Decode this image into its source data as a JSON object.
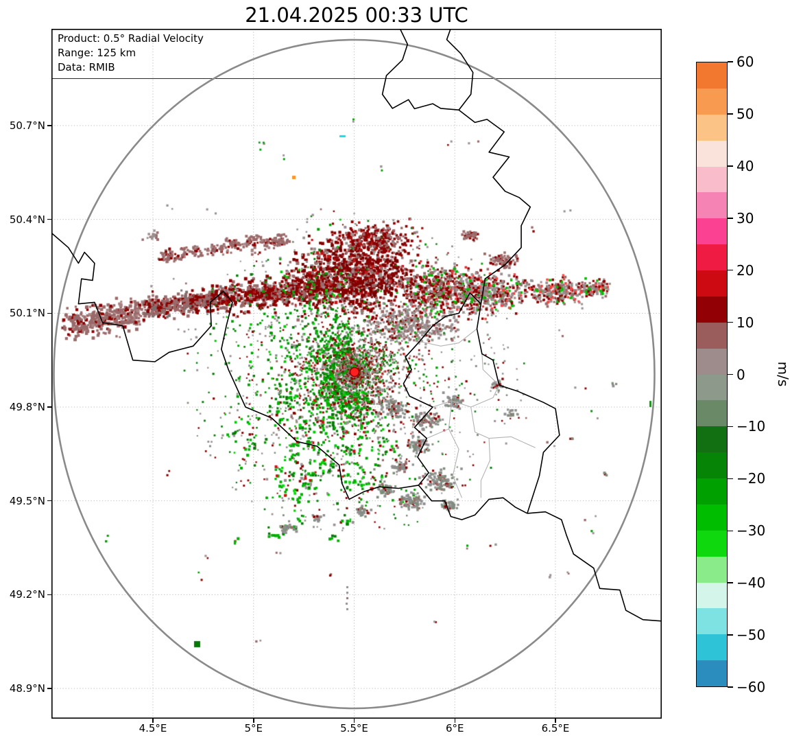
{
  "title": "21.04.2025 00:33 UTC",
  "info_box": {
    "lines": [
      "Product: 0.5° Radial Velocity",
      "Range: 125 km",
      "Data: RMIB"
    ]
  },
  "axes": {
    "y_tick_labels": [
      "50.7°N",
      "50.4°N",
      "50.1°N",
      "49.8°N",
      "49.5°N",
      "49.2°N",
      "48.9°N"
    ],
    "x_tick_labels": [
      "4.5°E",
      "5°E",
      "5.5°E",
      "6°E",
      "6.5°E"
    ]
  },
  "colorbar": {
    "unit": "m/s",
    "tick_labels": [
      "60",
      "50",
      "40",
      "30",
      "20",
      "10",
      "0",
      "−10",
      "−20",
      "−30",
      "−40",
      "−50",
      "−60"
    ],
    "value_range": [
      -60,
      60
    ],
    "segment_colors_top_to_bottom": [
      "#f1782e",
      "#f89b51",
      "#fbc486",
      "#fae3da",
      "#f8bccb",
      "#f584b5",
      "#fb4191",
      "#ef1b42",
      "#cd0a11",
      "#920005",
      "#9b5c5c",
      "#9e8c8c",
      "#8d9a8b",
      "#6a8a67",
      "#127012",
      "#058405",
      "#00a000",
      "#00bd00",
      "#0fd80f",
      "#8aeb8a",
      "#d3f5ea",
      "#7fe2e2",
      "#2fc3d8",
      "#2b8cbe"
    ]
  },
  "map": {
    "grid_color": "#c8c8c8",
    "range_ring_color": "#8a8a8a",
    "country_border_color": "#000000",
    "district_border_color": "#b3b3b3",
    "radar_marker_fill": "#ff1f1f",
    "radar_marker_edge": "#8b0000",
    "velocity_palette": {
      "away_strong": "#8b0000",
      "away_weak": "#9a6a6a",
      "near_zero": "#9a9090",
      "toward_weak": "#7d8d7a",
      "toward_moderate": "#0a7a0a",
      "toward_strong": "#00c000"
    }
  }
}
